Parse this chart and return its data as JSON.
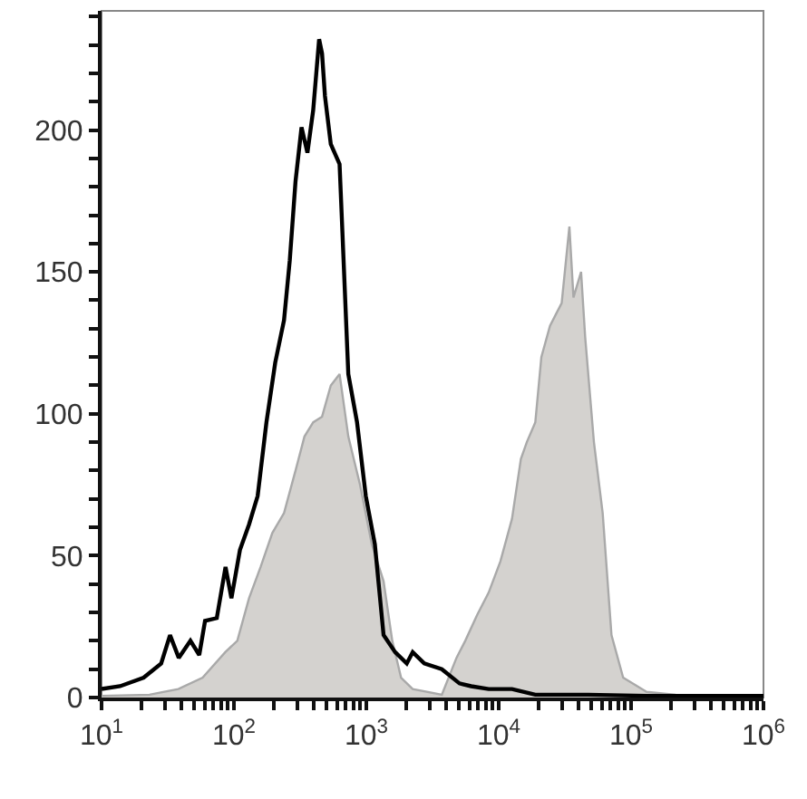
{
  "chart_data": {
    "type": "line",
    "xlim": [
      10,
      1000000
    ],
    "ylim": [
      0,
      242
    ],
    "log": "x",
    "grid": false,
    "marker": "none",
    "xticks": [
      {
        "value": 10,
        "label": "10$^{1}$"
      },
      {
        "value": 100,
        "label": "10$^{2}$"
      },
      {
        "value": 1000,
        "label": "10$^{3}$"
      },
      {
        "value": 10000,
        "label": "10$^{4}$"
      },
      {
        "value": 100000,
        "label": "10$^{5}$"
      },
      {
        "value": 1000000,
        "label": "10$^{6}$"
      },
      {
        "value": 20,
        "label": null
      },
      {
        "value": 30,
        "label": null
      },
      {
        "value": 40,
        "label": null
      },
      {
        "value": 50,
        "label": null
      },
      {
        "value": 60,
        "label": null
      },
      {
        "value": 70,
        "label": null
      },
      {
        "value": 80,
        "label": null
      },
      {
        "value": 90,
        "label": null
      },
      {
        "value": 200,
        "label": null
      },
      {
        "value": 300,
        "label": null
      },
      {
        "value": 400,
        "label": null
      },
      {
        "value": 500,
        "label": null
      },
      {
        "value": 600,
        "label": null
      },
      {
        "value": 700,
        "label": null
      },
      {
        "value": 800,
        "label": null
      },
      {
        "value": 900,
        "label": null
      },
      {
        "value": 2000,
        "label": null
      },
      {
        "value": 3000,
        "label": null
      },
      {
        "value": 4000,
        "label": null
      },
      {
        "value": 5000,
        "label": null
      },
      {
        "value": 6000,
        "label": null
      },
      {
        "value": 7000,
        "label": null
      },
      {
        "value": 8000,
        "label": null
      },
      {
        "value": 9000,
        "label": null
      },
      {
        "value": 20000,
        "label": null
      },
      {
        "value": 30000,
        "label": null
      },
      {
        "value": 40000,
        "label": null
      },
      {
        "value": 50000,
        "label": null
      },
      {
        "value": 60000,
        "label": null
      },
      {
        "value": 70000,
        "label": null
      },
      {
        "value": 80000,
        "label": null
      },
      {
        "value": 90000,
        "label": null
      },
      {
        "value": 200000,
        "label": null
      },
      {
        "value": 300000,
        "label": null
      },
      {
        "value": 400000,
        "label": null
      },
      {
        "value": 500000,
        "label": null
      },
      {
        "value": 600000,
        "label": null
      },
      {
        "value": 700000,
        "label": null
      },
      {
        "value": 800000,
        "label": null
      },
      {
        "value": 900000,
        "label": null
      }
    ],
    "yticks": [
      0,
      50,
      100,
      150,
      200,
      {
        "value": 10,
        "label": null
      },
      {
        "value": 20,
        "label": null
      },
      {
        "value": 30,
        "label": null
      },
      {
        "value": 40,
        "label": null
      },
      {
        "value": 60,
        "label": null
      },
      {
        "value": 70,
        "label": null
      },
      {
        "value": 80,
        "label": null
      },
      {
        "value": 90,
        "label": null
      },
      {
        "value": 110,
        "label": null
      },
      {
        "value": 120,
        "label": null
      },
      {
        "value": 130,
        "label": null
      },
      {
        "value": 140,
        "label": null
      },
      {
        "value": 160,
        "label": null
      },
      {
        "value": 170,
        "label": null
      },
      {
        "value": 180,
        "label": null
      },
      {
        "value": 190,
        "label": null
      },
      {
        "value": 210,
        "label": null
      },
      {
        "value": 220,
        "label": null
      },
      {
        "value": 230,
        "label": null
      },
      {
        "value": 240,
        "label": null
      }
    ],
    "series": [
      {
        "type": "area",
        "color": "#d4d2cf",
        "x": [
          10,
          23,
          38,
          58,
          86,
          106,
          130,
          159,
          195,
          239,
          292,
          341,
          397,
          463,
          539,
          628,
          731,
          896,
          1100,
          1350,
          1570,
          1830,
          2240,
          3720,
          4800,
          5590,
          6850,
          8400,
          10300,
          12600,
          14700,
          16300,
          18900,
          21000,
          24400,
          27000,
          29900,
          34200,
          36700,
          41900,
          45000,
          52400,
          61000,
          71100,
          87100,
          131000,
          217000,
          1000000
        ],
        "values": [
          0.6,
          1,
          3,
          7,
          16,
          20,
          35,
          46,
          58,
          65,
          80,
          92,
          97,
          99,
          110,
          114,
          92,
          75,
          54,
          41,
          20,
          7,
          3,
          1,
          14,
          20,
          29,
          37,
          48,
          63,
          84,
          90,
          97,
          120,
          131,
          135,
          139,
          166,
          141,
          150,
          127,
          90,
          65,
          22,
          7,
          2,
          1,
          0.4
        ]
      },
      {
        "color": "#000000",
        "x": [
          10,
          13.8,
          20.8,
          28.2,
          32.9,
          38.3,
          46.9,
          54.7,
          60.5,
          74.2,
          86.4,
          95.7,
          111,
          130,
          151,
          176,
          205,
          239,
          264,
          292,
          324,
          359,
          397,
          440,
          463,
          487,
          539,
          628,
          731,
          851,
          991,
          1160,
          1350,
          1650,
          2020,
          2240,
          2740,
          3720,
          5050,
          6190,
          8400,
          12600,
          18900,
          47300,
          131000,
          1000000
        ],
        "values": [
          3,
          4,
          7,
          12,
          22,
          14,
          20,
          15,
          27,
          28,
          46,
          35,
          52,
          61,
          71,
          97,
          118,
          133,
          154,
          182,
          201,
          192,
          207,
          232,
          227,
          212,
          195,
          188,
          114,
          97,
          71,
          54,
          22,
          16,
          12,
          16,
          12,
          10,
          5,
          4,
          3,
          3,
          1,
          1,
          0.6,
          0.6
        ]
      }
    ]
  }
}
